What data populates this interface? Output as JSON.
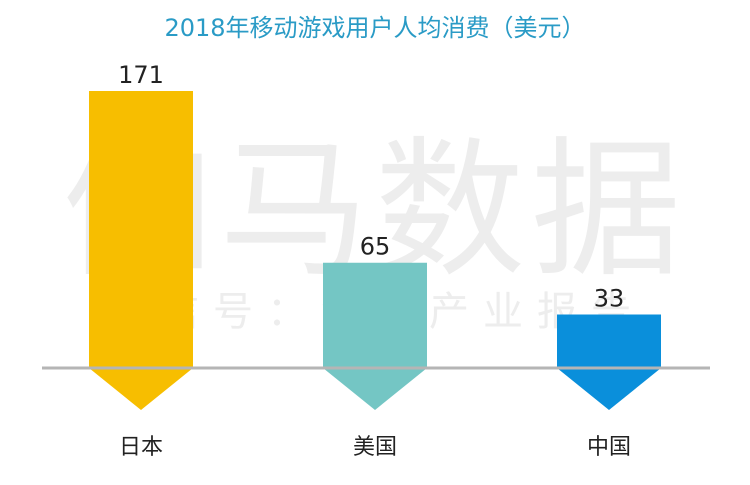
{
  "chart_data": {
    "type": "bar",
    "title": "2018年移动游戏用户人均消费（美元）",
    "categories": [
      "日本",
      "美国",
      "中国"
    ],
    "values": [
      171,
      65,
      33
    ],
    "colors": [
      "#F7BE00",
      "#74C6C4",
      "#0A8FDB"
    ],
    "ylim": [
      0,
      171
    ],
    "grid": false,
    "legend": "none",
    "watermark": {
      "main": "伽马数据",
      "sub": "微信号：游戏产业报告"
    }
  },
  "style": {
    "title_color": "#2A9BC6",
    "baseline_color": "#B5B5B5",
    "label_color": "#222222",
    "watermark_color": "#EDEDED"
  }
}
